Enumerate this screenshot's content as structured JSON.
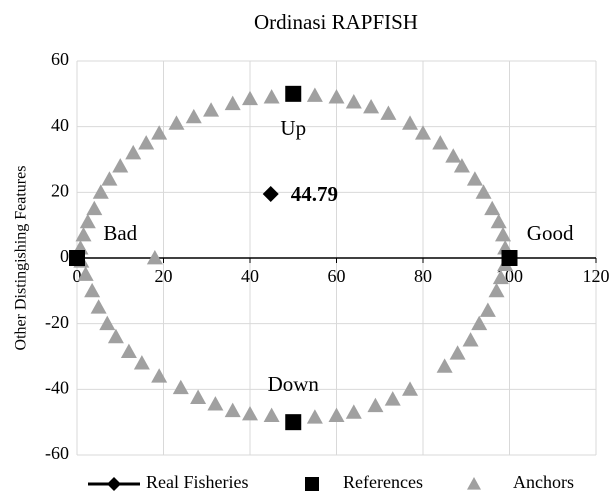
{
  "chart_data": {
    "type": "scatter",
    "title": "Ordinasi RAPFISH",
    "y_label": "Other Distingishing Features",
    "xlim": [
      0,
      120
    ],
    "xticks": [
      0,
      20,
      40,
      60,
      80,
      100,
      120
    ],
    "ylim": [
      -60,
      60
    ],
    "yticks": [
      -60,
      -40,
      -20,
      0,
      20,
      40,
      60
    ],
    "grid": true,
    "legend": "bottom",
    "annotations": [
      "Up",
      "Down",
      "Bad",
      "Good"
    ],
    "series": [
      {
        "name": "Real Fisheries",
        "color": "#000000",
        "marker": "diamond",
        "x": [
          44.79
        ],
        "values": [
          19.5
        ]
      },
      {
        "name": "References",
        "color": "#000000",
        "marker": "square",
        "x": [
          0,
          100,
          50,
          50
        ],
        "values": [
          0,
          0,
          50,
          -50
        ]
      },
      {
        "name": "Anchors",
        "color": "#a0a0a0",
        "marker": "triangle",
        "x": [
          0.8,
          1.5,
          2.5,
          4,
          5.5,
          7.5,
          10,
          13,
          16,
          19,
          23,
          27,
          31,
          36,
          40,
          45,
          55,
          60,
          64,
          68,
          72,
          77,
          80,
          84,
          87,
          89,
          92,
          94,
          96,
          97.5,
          98.5,
          99,
          99,
          98,
          97,
          95,
          93,
          91,
          88,
          85,
          77,
          73,
          69,
          64,
          60,
          55,
          45,
          40,
          36,
          32,
          28,
          24,
          19,
          15,
          12,
          9,
          7,
          5,
          3.5,
          2,
          1,
          18
        ],
        "values": [
          3,
          7,
          11,
          15,
          20,
          24,
          28,
          32,
          35,
          38,
          41,
          43,
          45,
          47,
          48.5,
          49,
          49.5,
          49,
          47.5,
          46,
          44,
          41,
          38,
          35,
          31,
          28,
          24,
          20,
          15,
          11,
          7,
          3,
          -2,
          -6,
          -10,
          -16,
          -20,
          -25,
          -29,
          -33,
          -40,
          -43,
          -45,
          -47,
          -48,
          -48.5,
          -48,
          -47.5,
          -46.5,
          -44.5,
          -42.5,
          -39.5,
          -36,
          -32,
          -28.5,
          -24,
          -20,
          -15,
          -10,
          -5,
          -1,
          0
        ]
      }
    ]
  }
}
